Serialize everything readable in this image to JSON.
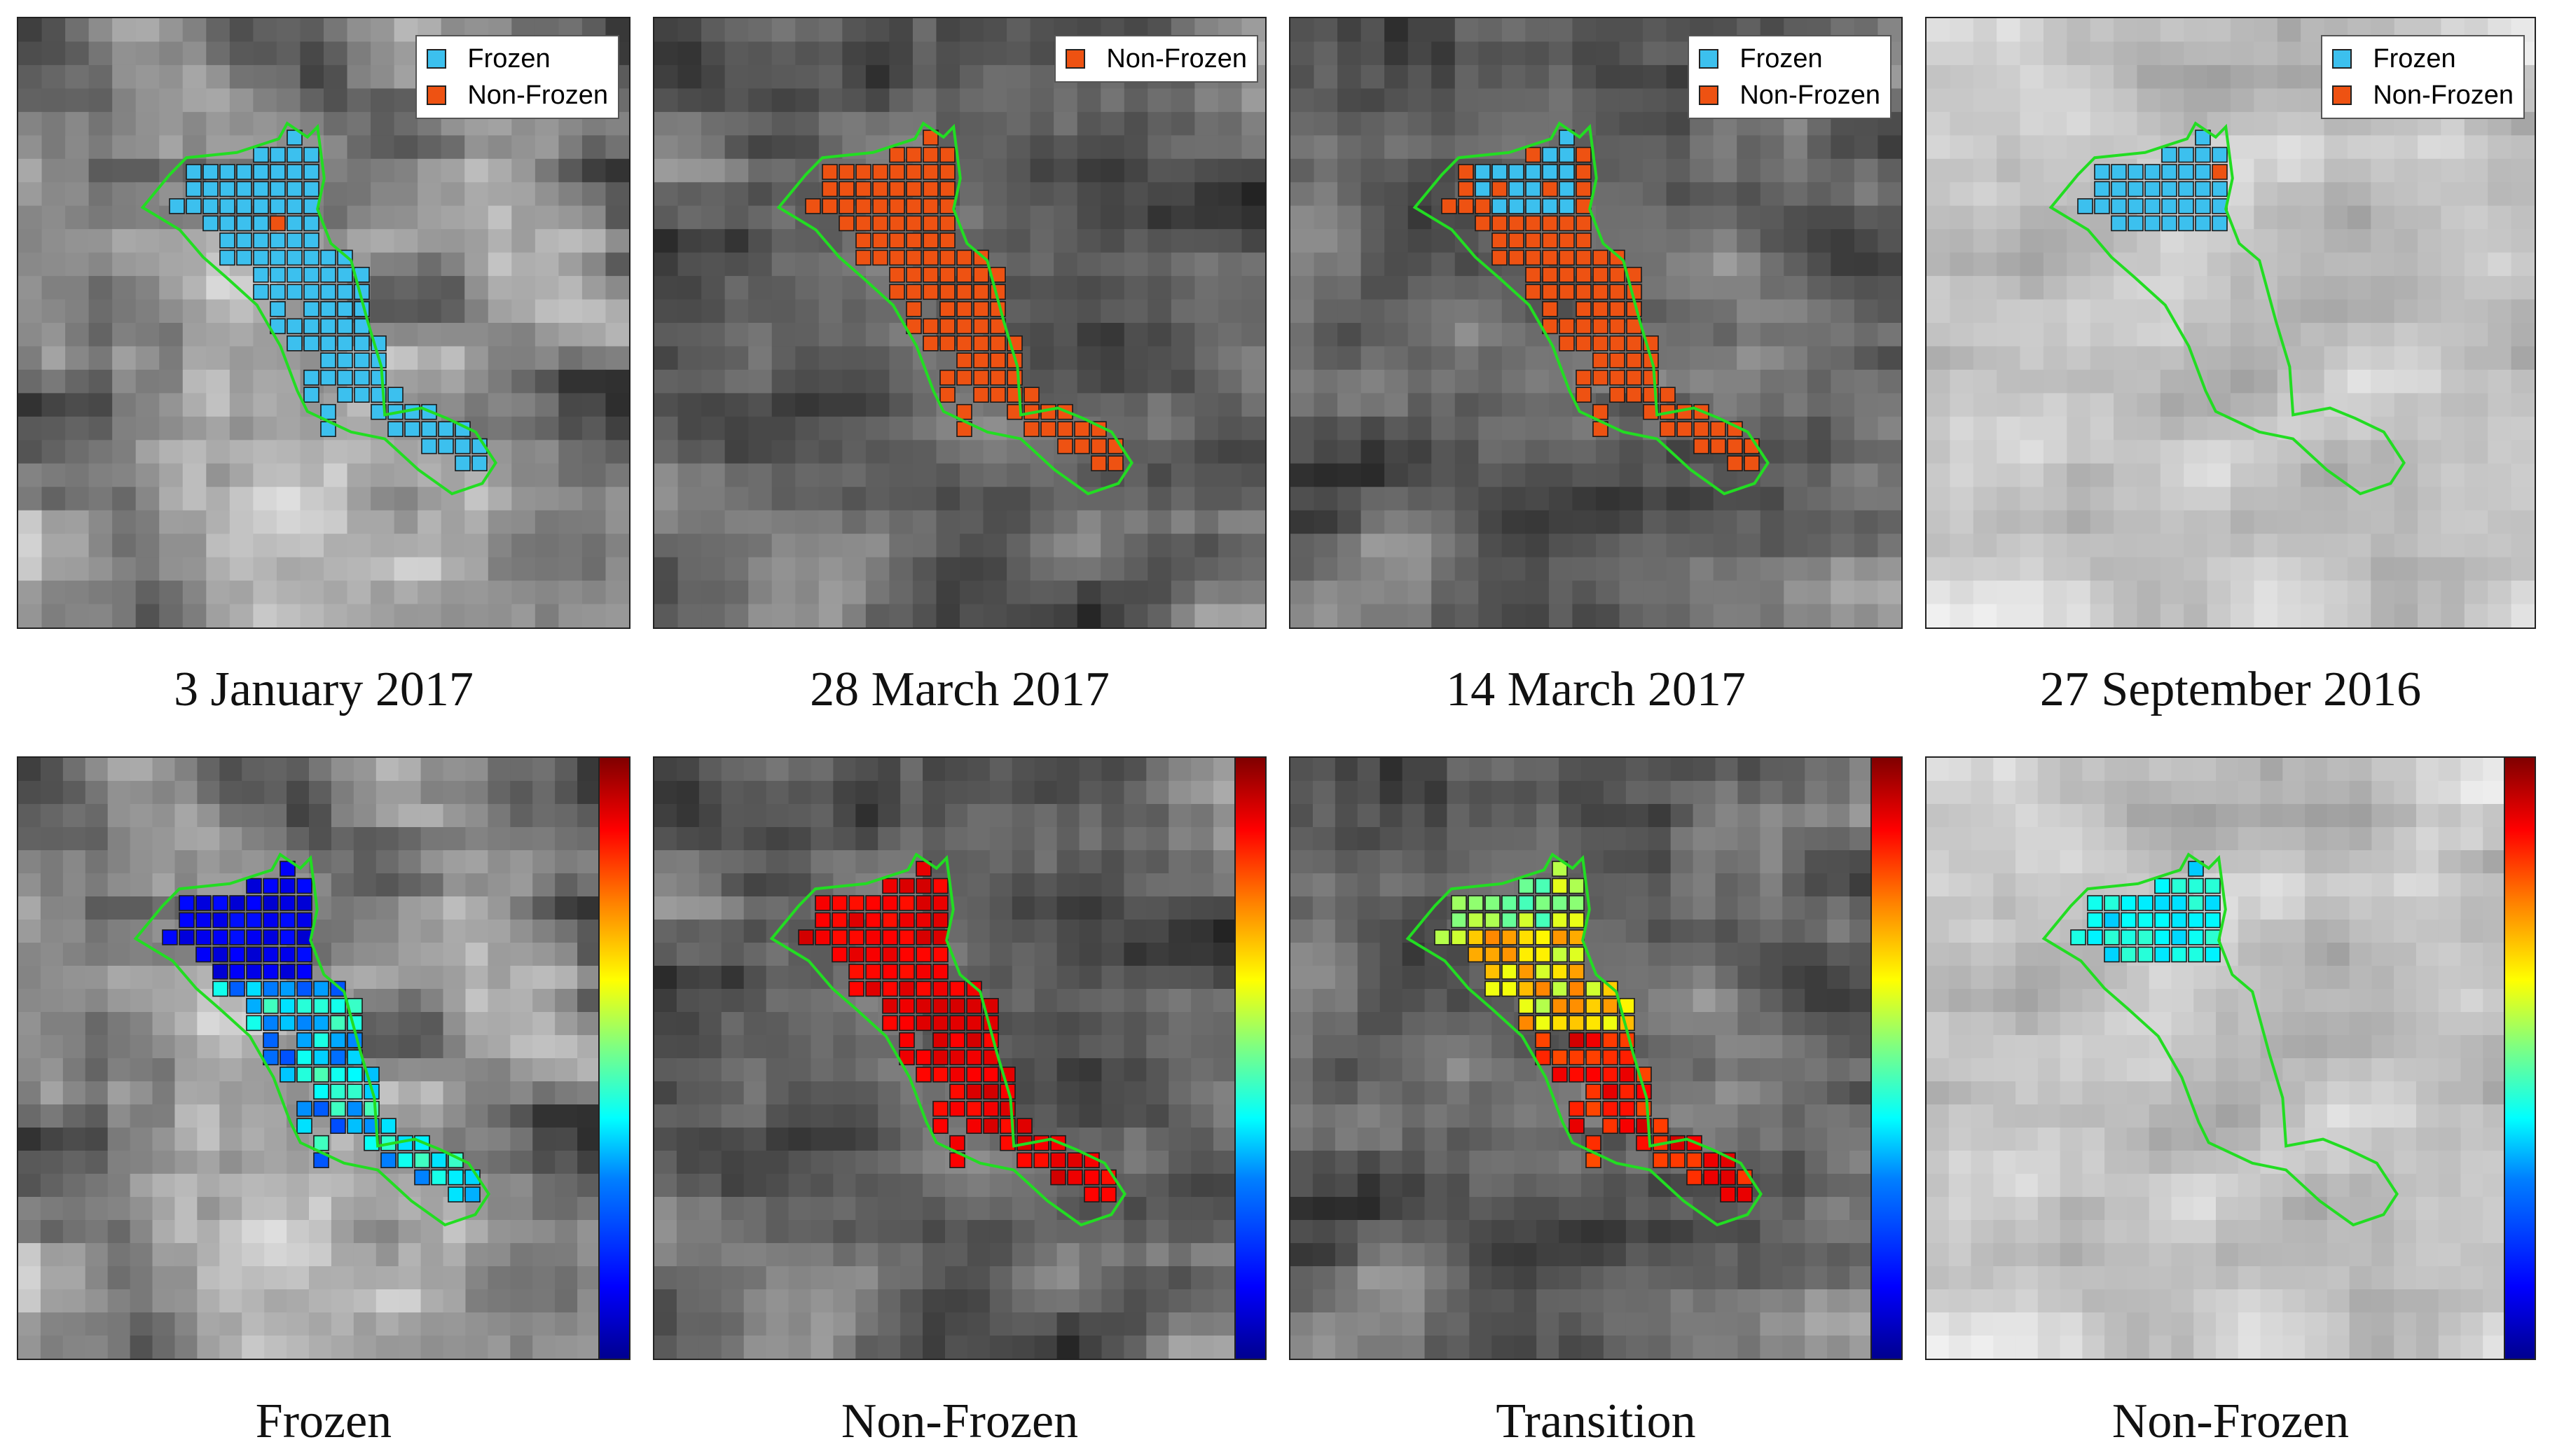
{
  "legend": {
    "frozen_label": "Frozen",
    "nonfrozen_label": "Non-Frozen",
    "frozen_color": "#3cc0ee",
    "nonfrozen_color": "#ee5212"
  },
  "top_captions": [
    "3 January 2017",
    "28 March 2017",
    "14 March 2017",
    "27 September 2016"
  ],
  "bottom_captions": [
    "Frozen",
    "Non-Frozen",
    "Transition",
    "Non-Frozen"
  ],
  "colormap": "jet",
  "outline_color": "#22dd22",
  "top_panels": [
    {
      "legend_items": [
        "frozen",
        "nonfrozen"
      ],
      "pixel_classes": "frozen"
    },
    {
      "legend_items": [
        "nonfrozen"
      ],
      "pixel_classes": "nonfrozen"
    },
    {
      "legend_items": [
        "frozen",
        "nonfrozen"
      ],
      "pixel_classes": "transition"
    },
    {
      "legend_items": [
        "frozen",
        "nonfrozen"
      ],
      "pixel_classes": "frozen-upper"
    }
  ]
}
